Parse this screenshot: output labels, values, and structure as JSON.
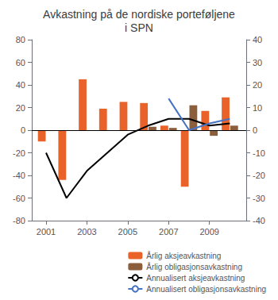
{
  "chart_data": {
    "type": "bar",
    "title": "Avkastning på de nordiske porteføljene\ni SPN",
    "x": [
      2001,
      2002,
      2003,
      2004,
      2005,
      2006,
      2007,
      2008,
      2009,
      2010
    ],
    "series": [
      {
        "name": "Årlig aksjeavkastning",
        "type": "bar",
        "color": "#E8622A",
        "values": [
          -10,
          -44,
          45,
          19,
          25,
          24,
          4,
          -50,
          17,
          29
        ]
      },
      {
        "name": "Årlig obligasjonsavkastning",
        "type": "bar",
        "color": "#8B5E3C",
        "values": [
          0,
          0,
          0,
          0,
          0,
          3,
          2,
          22,
          -5,
          4
        ]
      },
      {
        "name": "Annualisert aksjeavkastning",
        "type": "line",
        "axis": "y2",
        "color": "#000000",
        "values": [
          -10,
          -30,
          -18,
          -10,
          -2,
          2,
          5,
          5,
          2,
          3
        ]
      },
      {
        "name": "Annualisert obligasjonsavkastning",
        "type": "line",
        "axis": "y2",
        "color": "#4472C4",
        "values": [
          null,
          null,
          null,
          null,
          null,
          null,
          14,
          0,
          3,
          5
        ]
      }
    ],
    "xlim": [
      2000.3,
      2010.8
    ],
    "xticks": [
      2001,
      2003,
      2005,
      2007,
      2009
    ],
    "ylim": [
      -80,
      80
    ],
    "yticks": [
      -80,
      -60,
      -40,
      -20,
      0,
      20,
      40,
      60,
      80
    ],
    "y2lim": [
      -40,
      40
    ],
    "y2ticks": [
      -40,
      -30,
      -20,
      -10,
      0,
      10,
      20,
      30,
      40
    ],
    "grid": false,
    "legend": "lower right"
  }
}
